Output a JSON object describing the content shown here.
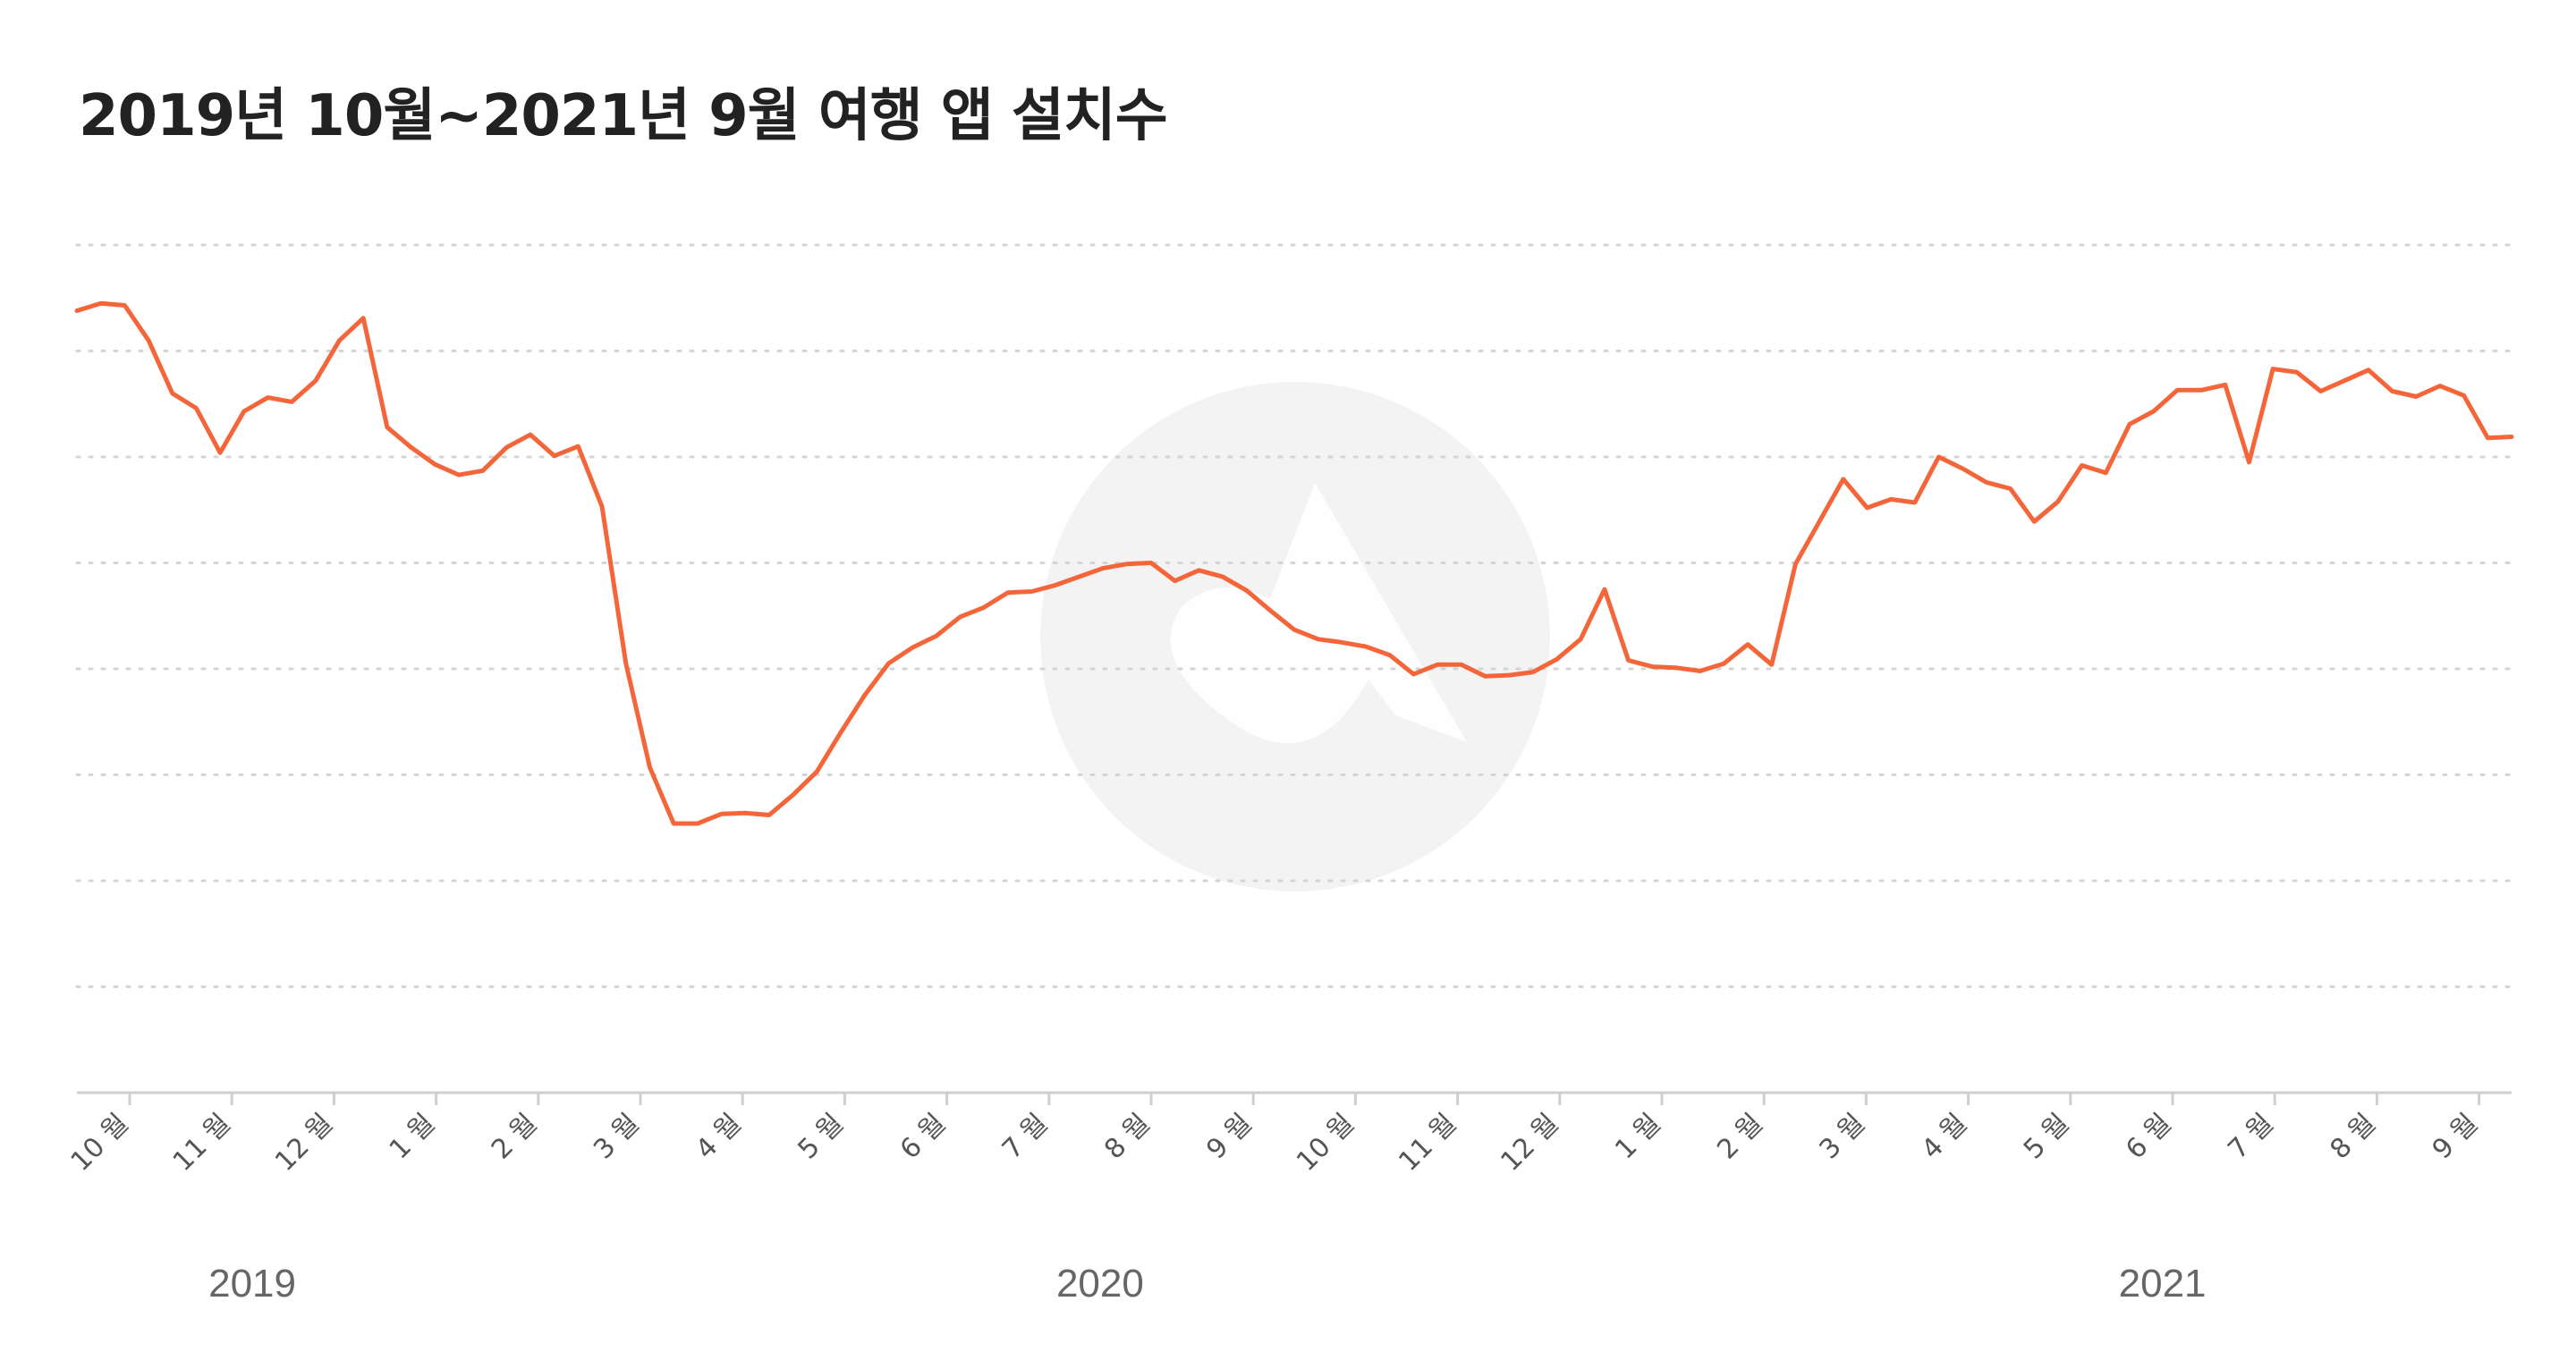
{
  "chart_data": {
    "type": "line",
    "title": "2019년 10월~2021년 9월 여행 앱 설치수",
    "xlabel": "",
    "ylabel": "",
    "y_tick_labels_visible": false,
    "grid": "horizontal dotted",
    "legend": "none",
    "line_color": "#F4663A",
    "grid_color": "#d4d4d4",
    "watermark_color": "#f3f3f3",
    "month_labels": [
      "10 월",
      "11 월",
      "12 월",
      "1 월",
      "2 월",
      "3 월",
      "4 월",
      "5 월",
      "6 월",
      "7 월",
      "8 월",
      "9 월",
      "10 월",
      "11 월",
      "12 월",
      "1 월",
      "2 월",
      "3 월",
      "4 월",
      "5 월",
      "6 월",
      "7 월",
      "8 월",
      "9 월"
    ],
    "year_labels": [
      {
        "text": "2019",
        "month_index": 1.2
      },
      {
        "text": "2020",
        "month_index": 9.5
      },
      {
        "text": "2021",
        "month_index": 19.9
      }
    ],
    "ylim": [
      0,
      8
    ],
    "series": [
      {
        "values": [
          7.38,
          7.45,
          7.43,
          7.1,
          6.6,
          6.46,
          6.04,
          6.43,
          6.56,
          6.52,
          6.72,
          7.1,
          7.31,
          6.28,
          6.09,
          5.93,
          5.83,
          5.87,
          6.09,
          6.21,
          6.01,
          6.1,
          5.53,
          4.05,
          3.07,
          2.54,
          2.54,
          2.63,
          2.64,
          2.62,
          2.81,
          3.03,
          3.4,
          3.75,
          4.05,
          4.2,
          4.31,
          4.49,
          4.58,
          4.72,
          4.73,
          4.79,
          4.87,
          4.95,
          4.99,
          5.0,
          4.83,
          4.93,
          4.87,
          4.74,
          4.55,
          4.37,
          4.28,
          4.25,
          4.21,
          4.13,
          3.95,
          4.04,
          4.04,
          3.93,
          3.94,
          3.97,
          4.09,
          4.28,
          4.75,
          4.08,
          4.02,
          4.01,
          3.98,
          4.05,
          4.23,
          4.04,
          4.99,
          5.39,
          5.79,
          5.52,
          5.6,
          5.57,
          6.0,
          5.89,
          5.76,
          5.7,
          5.39,
          5.58,
          5.92,
          5.85,
          6.31,
          6.43,
          6.63,
          6.63,
          6.68,
          5.95,
          6.83,
          6.8,
          6.62,
          6.72,
          6.82,
          6.62,
          6.57,
          6.67,
          6.58,
          6.18,
          6.19
        ]
      }
    ]
  }
}
